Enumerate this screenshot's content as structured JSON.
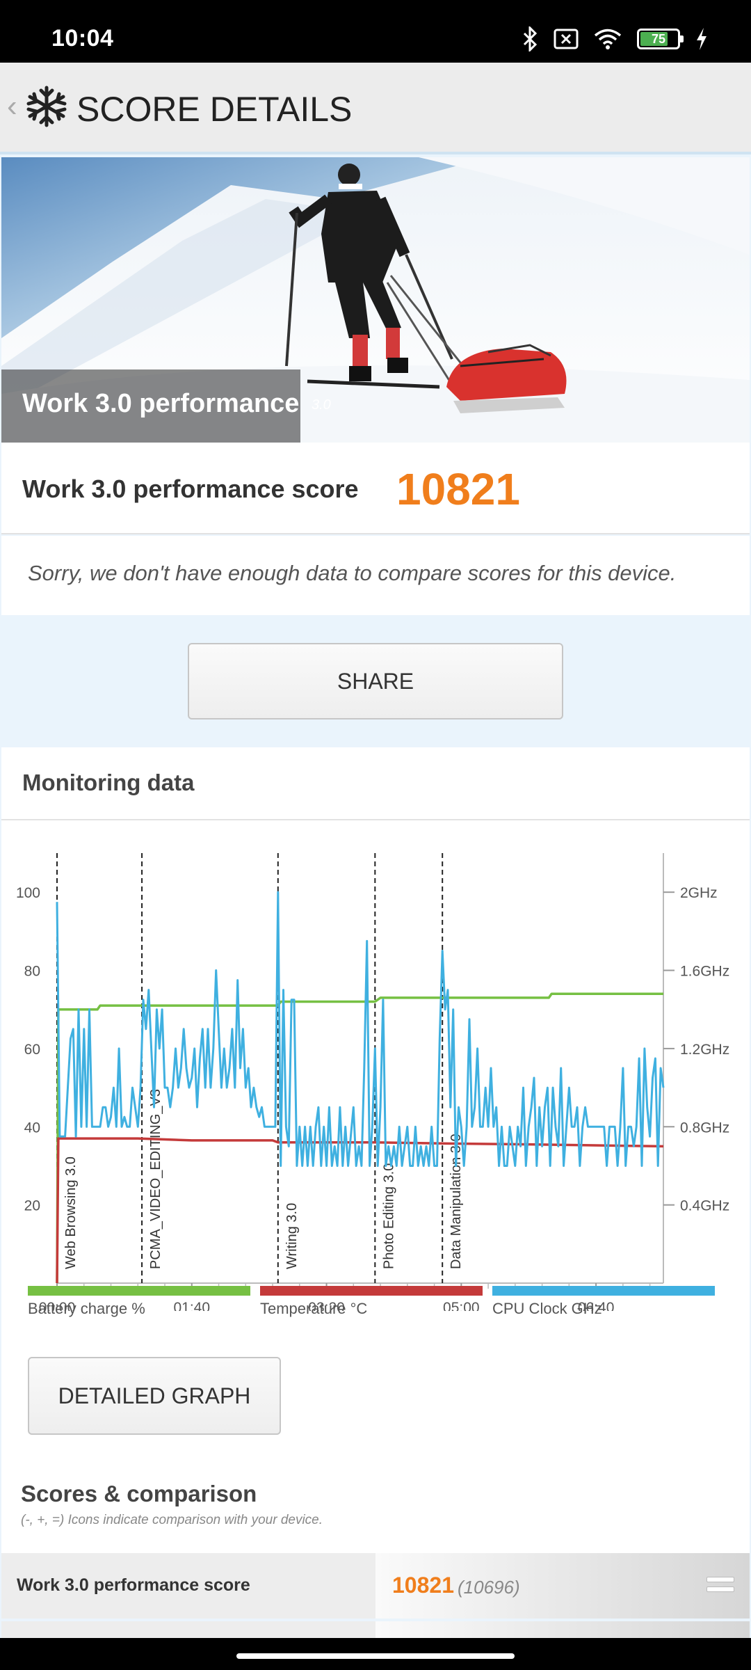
{
  "status_bar": {
    "time": "10:04",
    "battery": "75",
    "battery_level": 0.75
  },
  "header": {
    "title": "SCORE DETAILS"
  },
  "hero": {
    "caption": "Work 3.0 performance",
    "version": "3.0"
  },
  "score": {
    "label": "Work 3.0 performance score",
    "value": "10821"
  },
  "notice": "Sorry, we don't have enough data to compare scores for this device.",
  "share_label": "SHARE",
  "monitoring": {
    "title": "Monitoring data"
  },
  "chart_data": {
    "type": "line",
    "x_ticks": [
      "00:00",
      "01:40",
      "03:20",
      "05:00",
      "06:40"
    ],
    "x_range_seconds": [
      0,
      450
    ],
    "left_axis": {
      "ticks": [
        "100",
        "80",
        "60",
        "40",
        "20"
      ],
      "range": [
        0,
        110
      ]
    },
    "right_axis": {
      "ticks": [
        "2GHz",
        "1.6GHz",
        "1.2GHz",
        "0.8GHz",
        "0.4GHz"
      ],
      "range_ghz": [
        0,
        2.2
      ]
    },
    "markers": [
      {
        "label": "Web Browsing 3.0",
        "t": 0
      },
      {
        "label": "PCMA_VIDEO_EDITING_V3",
        "t": 63
      },
      {
        "label": "Writing 3.0",
        "t": 164
      },
      {
        "label": "Photo Editing 3.0",
        "t": 236
      },
      {
        "label": "Data Manipulation 3.0",
        "t": 286
      }
    ],
    "series": [
      {
        "name": "Battery charge %",
        "color": "#76c043",
        "points": [
          [
            0,
            0
          ],
          [
            1,
            70
          ],
          [
            30,
            70
          ],
          [
            32,
            71
          ],
          [
            164,
            71
          ],
          [
            166,
            72
          ],
          [
            236,
            72
          ],
          [
            240,
            73
          ],
          [
            365,
            73
          ],
          [
            367,
            74
          ],
          [
            450,
            74
          ]
        ]
      },
      {
        "name": "Temperature °C",
        "color": "#c43a3a",
        "points": [
          [
            0,
            0
          ],
          [
            1,
            37
          ],
          [
            60,
            37
          ],
          [
            100,
            36.5
          ],
          [
            160,
            36.5
          ],
          [
            164,
            36
          ],
          [
            236,
            36
          ],
          [
            290,
            35.7
          ],
          [
            350,
            35.5
          ],
          [
            450,
            35
          ]
        ]
      },
      {
        "name": "CPU Clock GHz",
        "color": "#3fb0e0",
        "points": [
          [
            0,
            1.95
          ],
          [
            2,
            0.75
          ],
          [
            4,
            0.75
          ],
          [
            6,
            0.75
          ],
          [
            8,
            1.0
          ],
          [
            10,
            1.25
          ],
          [
            12,
            1.3
          ],
          [
            14,
            0.75
          ],
          [
            16,
            1.4
          ],
          [
            18,
            0.8
          ],
          [
            20,
            1.3
          ],
          [
            22,
            0.8
          ],
          [
            24,
            1.4
          ],
          [
            26,
            0.8
          ],
          [
            28,
            0.8
          ],
          [
            30,
            0.8
          ],
          [
            32,
            0.8
          ],
          [
            34,
            0.9
          ],
          [
            36,
            0.9
          ],
          [
            38,
            0.8
          ],
          [
            40,
            0.85
          ],
          [
            42,
            1.0
          ],
          [
            44,
            0.8
          ],
          [
            46,
            1.2
          ],
          [
            48,
            0.8
          ],
          [
            50,
            0.85
          ],
          [
            52,
            0.8
          ],
          [
            54,
            0.8
          ],
          [
            56,
            1.0
          ],
          [
            58,
            0.9
          ],
          [
            60,
            0.8
          ],
          [
            62,
            1.0
          ],
          [
            64,
            1.45
          ],
          [
            66,
            1.3
          ],
          [
            68,
            1.5
          ],
          [
            70,
            1.2
          ],
          [
            72,
            0.9
          ],
          [
            74,
            1.4
          ],
          [
            76,
            1.2
          ],
          [
            78,
            1.4
          ],
          [
            80,
            1.0
          ],
          [
            82,
            1.0
          ],
          [
            84,
            0.9
          ],
          [
            86,
            1.0
          ],
          [
            88,
            1.2
          ],
          [
            90,
            1.0
          ],
          [
            92,
            1.1
          ],
          [
            94,
            1.3
          ],
          [
            96,
            1.1
          ],
          [
            98,
            1.0
          ],
          [
            100,
            1.05
          ],
          [
            102,
            1.2
          ],
          [
            104,
            0.9
          ],
          [
            106,
            1.15
          ],
          [
            108,
            1.3
          ],
          [
            110,
            1.0
          ],
          [
            112,
            1.3
          ],
          [
            114,
            1.0
          ],
          [
            116,
            1.2
          ],
          [
            118,
            1.6
          ],
          [
            120,
            1.3
          ],
          [
            122,
            1.0
          ],
          [
            124,
            1.2
          ],
          [
            126,
            1.0
          ],
          [
            128,
            1.1
          ],
          [
            130,
            1.3
          ],
          [
            132,
            1.0
          ],
          [
            134,
            1.55
          ],
          [
            136,
            1.1
          ],
          [
            138,
            1.3
          ],
          [
            140,
            1.0
          ],
          [
            142,
            1.1
          ],
          [
            144,
            0.9
          ],
          [
            146,
            1.0
          ],
          [
            148,
            0.9
          ],
          [
            150,
            0.85
          ],
          [
            152,
            0.9
          ],
          [
            154,
            0.8
          ],
          [
            156,
            0.8
          ],
          [
            158,
            0.8
          ],
          [
            160,
            0.8
          ],
          [
            162,
            0.8
          ],
          [
            164,
            2.0
          ],
          [
            166,
            0.6
          ],
          [
            168,
            1.5
          ],
          [
            170,
            0.8
          ],
          [
            172,
            0.7
          ],
          [
            174,
            1.45
          ],
          [
            176,
            1.45
          ],
          [
            178,
            0.6
          ],
          [
            180,
            0.8
          ],
          [
            182,
            0.6
          ],
          [
            184,
            0.8
          ],
          [
            186,
            0.6
          ],
          [
            188,
            0.8
          ],
          [
            190,
            0.6
          ],
          [
            192,
            0.8
          ],
          [
            194,
            0.9
          ],
          [
            196,
            0.6
          ],
          [
            198,
            0.8
          ],
          [
            200,
            0.6
          ],
          [
            202,
            0.9
          ],
          [
            204,
            0.6
          ],
          [
            206,
            0.7
          ],
          [
            208,
            0.6
          ],
          [
            210,
            0.9
          ],
          [
            212,
            0.6
          ],
          [
            214,
            0.8
          ],
          [
            216,
            0.6
          ],
          [
            218,
            0.75
          ],
          [
            220,
            0.9
          ],
          [
            222,
            0.6
          ],
          [
            224,
            0.7
          ],
          [
            226,
            0.6
          ],
          [
            228,
            1.1
          ],
          [
            230,
            1.75
          ],
          [
            232,
            0.6
          ],
          [
            234,
            0.8
          ],
          [
            236,
            1.2
          ],
          [
            238,
            0.6
          ],
          [
            240,
            0.9
          ],
          [
            242,
            1.45
          ],
          [
            244,
            0.6
          ],
          [
            246,
            0.7
          ],
          [
            248,
            0.6
          ],
          [
            250,
            0.7
          ],
          [
            252,
            0.6
          ],
          [
            254,
            0.8
          ],
          [
            256,
            0.6
          ],
          [
            258,
            0.7
          ],
          [
            260,
            0.8
          ],
          [
            262,
            0.6
          ],
          [
            264,
            0.6
          ],
          [
            266,
            0.8
          ],
          [
            268,
            0.6
          ],
          [
            270,
            0.7
          ],
          [
            272,
            0.6
          ],
          [
            274,
            0.7
          ],
          [
            276,
            0.6
          ],
          [
            278,
            0.8
          ],
          [
            280,
            0.6
          ],
          [
            282,
            0.6
          ],
          [
            284,
            1.25
          ],
          [
            286,
            1.7
          ],
          [
            288,
            1.4
          ],
          [
            290,
            1.5
          ],
          [
            292,
            0.9
          ],
          [
            294,
            1.4
          ],
          [
            296,
            0.6
          ],
          [
            298,
            0.9
          ],
          [
            300,
            0.8
          ],
          [
            302,
            0.6
          ],
          [
            304,
            0.8
          ],
          [
            306,
            1.35
          ],
          [
            308,
            0.8
          ],
          [
            310,
            0.9
          ],
          [
            312,
            1.2
          ],
          [
            314,
            0.8
          ],
          [
            316,
            0.8
          ],
          [
            318,
            1.0
          ],
          [
            320,
            0.8
          ],
          [
            322,
            1.1
          ],
          [
            324,
            0.8
          ],
          [
            326,
            0.9
          ],
          [
            328,
            0.6
          ],
          [
            330,
            0.8
          ],
          [
            332,
            0.6
          ],
          [
            334,
            0.6
          ],
          [
            336,
            0.8
          ],
          [
            338,
            0.7
          ],
          [
            340,
            0.6
          ],
          [
            342,
            0.8
          ],
          [
            344,
            0.7
          ],
          [
            346,
            1.0
          ],
          [
            348,
            0.6
          ],
          [
            350,
            0.8
          ],
          [
            352,
            0.9
          ],
          [
            354,
            1.05
          ],
          [
            356,
            0.6
          ],
          [
            358,
            0.9
          ],
          [
            360,
            0.7
          ],
          [
            362,
            0.9
          ],
          [
            364,
            1.0
          ],
          [
            366,
            0.6
          ],
          [
            368,
            1.0
          ],
          [
            370,
            0.8
          ],
          [
            372,
            0.7
          ],
          [
            374,
            1.1
          ],
          [
            376,
            0.6
          ],
          [
            378,
            0.8
          ],
          [
            380,
            1.0
          ],
          [
            382,
            0.8
          ],
          [
            384,
            0.8
          ],
          [
            386,
            0.9
          ],
          [
            388,
            0.6
          ],
          [
            390,
            0.8
          ],
          [
            392,
            0.9
          ],
          [
            394,
            0.8
          ],
          [
            396,
            0.8
          ],
          [
            398,
            0.8
          ],
          [
            400,
            0.8
          ],
          [
            402,
            0.8
          ],
          [
            404,
            0.8
          ],
          [
            406,
            0.8
          ],
          [
            408,
            0.6
          ],
          [
            410,
            0.8
          ],
          [
            412,
            0.8
          ],
          [
            414,
            0.8
          ],
          [
            416,
            0.6
          ],
          [
            418,
            0.8
          ],
          [
            420,
            1.1
          ],
          [
            422,
            0.6
          ],
          [
            424,
            0.8
          ],
          [
            426,
            0.8
          ],
          [
            428,
            0.7
          ],
          [
            430,
            0.8
          ],
          [
            432,
            1.15
          ],
          [
            434,
            0.6
          ],
          [
            436,
            1.2
          ],
          [
            438,
            0.9
          ],
          [
            440,
            0.75
          ],
          [
            442,
            1.05
          ],
          [
            444,
            1.15
          ],
          [
            446,
            0.6
          ],
          [
            448,
            1.1
          ],
          [
            450,
            1.0
          ]
        ]
      }
    ],
    "legend_position": "bottom"
  },
  "legend": [
    {
      "label": "Battery charge %",
      "color": "#76c043"
    },
    {
      "label": "Temperature °C",
      "color": "#c43a3a"
    },
    {
      "label": "CPU Clock GHz",
      "color": "#3fb0e0"
    }
  ],
  "detailed_graph_label": "DETAILED GRAPH",
  "scores_section": {
    "title": "Scores & comparison",
    "subtitle": "(-, +, =) Icons indicate comparison with your device.",
    "rows": [
      {
        "label": "Work 3.0 performance score",
        "score": "10821",
        "comparison": "(10696)"
      }
    ]
  }
}
